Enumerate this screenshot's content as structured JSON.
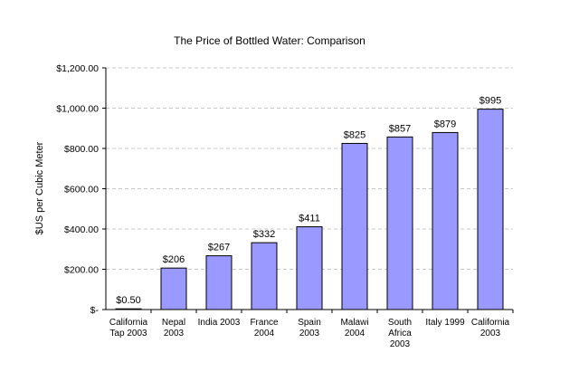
{
  "chart_data": {
    "type": "bar",
    "title": "The Price of Bottled Water: Comparison",
    "xlabel": "",
    "ylabel": "$US per Cubic Meter",
    "ylim": [
      0,
      1200
    ],
    "yticks": [
      0,
      200,
      400,
      600,
      800,
      1000,
      1200
    ],
    "ytick_labels": [
      "$-",
      "$200.00",
      "$400.00",
      "$600.00",
      "$800.00",
      "$1,000.00",
      "$1,200.00"
    ],
    "grid": true,
    "categories": [
      [
        "California",
        "Tap 2003"
      ],
      [
        "Nepal",
        "2003"
      ],
      [
        "India 2003"
      ],
      [
        "France",
        "2004"
      ],
      [
        "Spain",
        "2003"
      ],
      [
        "Malawi",
        "2004"
      ],
      [
        "South",
        "Africa",
        "2003"
      ],
      [
        "Italy 1999"
      ],
      [
        "California",
        "2003"
      ]
    ],
    "values": [
      0.5,
      206,
      267,
      332,
      411,
      825,
      857,
      879,
      995
    ],
    "data_labels": [
      "$0.50",
      "$206",
      "$267",
      "$332",
      "$411",
      "$825",
      "$857",
      "$879",
      "$995"
    ],
    "bar_color": "#9999ff"
  }
}
